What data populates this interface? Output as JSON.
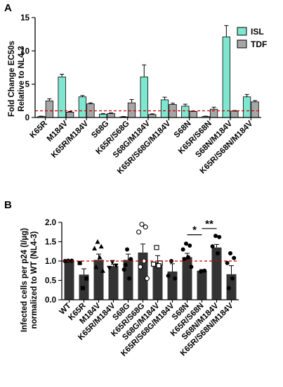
{
  "chart_data": [
    {
      "panel": "A",
      "type": "bar",
      "ylabel_line1": "Fold Change EC50s",
      "ylabel_line2": "Relative to NL4-3",
      "ylim": [
        0,
        15
      ],
      "yticks": [
        0,
        5,
        10,
        15
      ],
      "reference_line": 1,
      "categories": [
        "K65R",
        "M184V",
        "K65R/M184V",
        "S68G",
        "K65R/S68G",
        "S68G/M184V",
        "K65R/S68G/M184V",
        "S68N",
        "K65R/S68N",
        "S68N/M184V",
        "K65R/S68N/M184V"
      ],
      "series": [
        {
          "name": "ISL",
          "color": "#7fe6cf",
          "values": [
            0.15,
            6.1,
            3.1,
            0.5,
            0.1,
            6.1,
            2.65,
            1.7,
            0.15,
            12.1,
            3.1
          ],
          "errors": [
            0.05,
            0.4,
            0.2,
            0.1,
            0.05,
            1.8,
            0.4,
            0.3,
            0.05,
            1.7,
            0.35
          ]
        },
        {
          "name": "TDF",
          "color": "#a6a6a6",
          "values": [
            2.5,
            0.8,
            2.05,
            0.6,
            2.2,
            0.45,
            1.95,
            0.9,
            1.25,
            0.95,
            2.35
          ],
          "errors": [
            0.3,
            0.1,
            0.15,
            0.1,
            0.5,
            0.1,
            0.2,
            0.1,
            0.3,
            0.1,
            0.2
          ]
        }
      ],
      "legend": "top-right"
    },
    {
      "panel": "B",
      "type": "bar",
      "ylabel_line1": "Infected cells per p24 (I/µg)",
      "ylabel_line2": "normalized to WT (NL4-3)",
      "ylim": [
        0,
        2.0
      ],
      "yticks": [
        "0.0",
        "0.5",
        "1.0",
        "1.5",
        "2.0"
      ],
      "reference_line": 1.0,
      "color": "#333333",
      "categories": [
        "WT",
        "K65R",
        "M184V",
        "K65R/M184V",
        "S68G",
        "K65R/S68G",
        "S68G/M184V",
        "K65R/S68G/M184V",
        "S68N",
        "K65R/S68N",
        "S68N/M184V",
        "K65R/S68N/M184V"
      ],
      "values": [
        1.01,
        0.65,
        1.03,
        0.87,
        1.03,
        1.22,
        0.97,
        0.73,
        1.1,
        0.75,
        1.35,
        0.66
      ],
      "errors": [
        0.01,
        0.15,
        0.15,
        0.05,
        0.15,
        0.22,
        0.17,
        0.2,
        0.1,
        0.03,
        0.08,
        0.22
      ],
      "points": [
        {
          "marker": "circle",
          "filled": true,
          "y": [
            1.01,
            1.01,
            1.0
          ]
        },
        {
          "marker": "square",
          "filled": true,
          "y": [
            0.3,
            0.55,
            0.95
          ]
        },
        {
          "marker": "triangle",
          "filled": true,
          "y": [
            1.5,
            1.38,
            1.33,
            1.1,
            0.85,
            0.75
          ]
        },
        {
          "marker": "triangle-down",
          "filled": true,
          "y": [
            0.97,
            0.88,
            0.82
          ]
        },
        {
          "marker": "circle",
          "filled": true,
          "y": [
            1.3,
            1.05,
            0.78,
            0.55,
            0.9
          ]
        },
        {
          "marker": "circle",
          "filled": false,
          "y": [
            1.95,
            1.88,
            1.75,
            1.0,
            0.85,
            0.55
          ]
        },
        {
          "marker": "square",
          "filled": false,
          "y": [
            1.35,
            0.95,
            0.92,
            0.88
          ]
        },
        {
          "marker": "circle",
          "filled": true,
          "y": [
            1.0,
            0.55,
            0.62
          ]
        },
        {
          "marker": "circle",
          "filled": true,
          "y": [
            1.45,
            1.4,
            1.3,
            1.1,
            1.05,
            0.85
          ]
        },
        {
          "marker": "circle",
          "filled": true,
          "y": [
            0.73,
            0.75
          ]
        },
        {
          "marker": "circle",
          "filled": true,
          "y": [
            1.65,
            1.62,
            1.38,
            1.2
          ]
        },
        {
          "marker": "circle",
          "filled": true,
          "y": [
            1.2,
            1.08,
            0.95,
            0.55,
            0.3
          ]
        }
      ],
      "significance": [
        {
          "label": "*",
          "from": "S68N",
          "to": "K65R/S68N"
        },
        {
          "label": "**",
          "from": "K65R/S68N",
          "to": "S68N/M184V"
        }
      ]
    }
  ]
}
